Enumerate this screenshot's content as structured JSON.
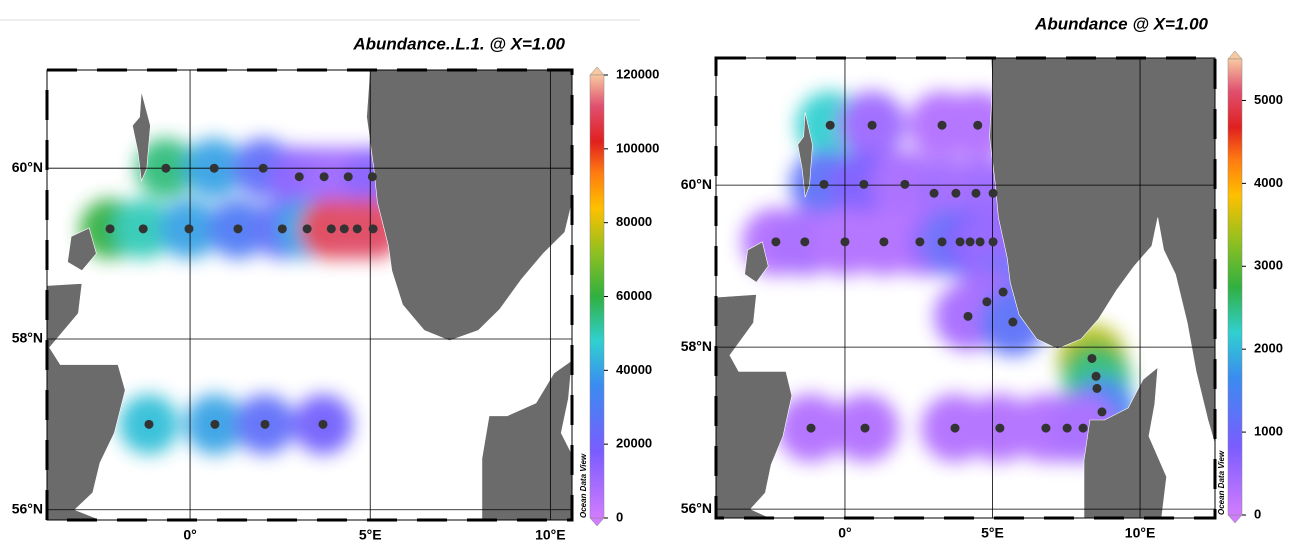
{
  "panels": [
    {
      "title": "Abundance..L.1. @ X=1.00",
      "xlim": [
        -3.97,
        10.6
      ],
      "ylim": [
        55.88,
        61.15
      ],
      "xticks": [
        {
          "value": 0,
          "label": "0°"
        },
        {
          "value": 5,
          "label": "5°E"
        },
        {
          "value": 10,
          "label": "10°E"
        }
      ],
      "yticks": [
        {
          "value": 56,
          "label": "56°N"
        },
        {
          "value": 58,
          "label": "58°N"
        },
        {
          "value": 60,
          "label": "60°N"
        }
      ],
      "clim": [
        0,
        120000
      ],
      "cticks": [
        0,
        20000,
        40000,
        60000,
        80000,
        100000,
        120000
      ],
      "watermark": "Ocean Data View",
      "stations": {
        "x": [
          -0.67,
          0.67,
          2.03,
          3.03,
          3.72,
          4.39,
          5.06,
          -2.22,
          -1.3,
          -0.03,
          1.33,
          2.56,
          3.25,
          3.92,
          4.28,
          4.64,
          5.08,
          -1.14,
          0.69,
          2.08,
          3.69
        ],
        "y": [
          60.0,
          60.0,
          60.0,
          59.9,
          59.9,
          59.9,
          59.9,
          59.29,
          59.29,
          59.29,
          59.29,
          59.29,
          59.29,
          59.29,
          59.29,
          59.29,
          59.29,
          57.0,
          57.0,
          57.0,
          57.0
        ],
        "values": [
          55000,
          40000,
          25000,
          15000,
          12000,
          10000,
          15000,
          60000,
          50000,
          40000,
          30000,
          25000,
          40000,
          100000,
          110000,
          110000,
          110000,
          45000,
          40000,
          25000,
          20000
        ]
      }
    },
    {
      "title": "Abundance @ X=1.00",
      "xlim": [
        -4.37,
        12.54
      ],
      "ylim": [
        55.89,
        61.57
      ],
      "xticks": [
        {
          "value": 0,
          "label": "0°"
        },
        {
          "value": 5,
          "label": "5°E"
        },
        {
          "value": 10,
          "label": "10°E"
        }
      ],
      "yticks": [
        {
          "value": 56,
          "label": "56°N"
        },
        {
          "value": 58,
          "label": "58°N"
        },
        {
          "value": 60,
          "label": "60°N"
        }
      ],
      "clim": [
        0,
        5500
      ],
      "cticks": [
        0,
        1000,
        2000,
        3000,
        4000,
        5000
      ],
      "watermark": "Ocean Data View",
      "stations": {
        "x": [
          -0.5,
          0.92,
          3.29,
          4.5,
          -0.71,
          0.64,
          2.03,
          3.02,
          3.76,
          4.44,
          5.02,
          -2.34,
          -1.36,
          0,
          1.32,
          2.54,
          3.29,
          3.9,
          4.24,
          4.58,
          5.02,
          5.36,
          4.81,
          4.17,
          5.69,
          8.37,
          8.51,
          8.54,
          8.71,
          -1.15,
          0.68,
          3.73,
          5.25,
          6.81,
          7.53,
          8.07
        ],
        "y": [
          60.74,
          60.74,
          60.74,
          60.74,
          60.01,
          60.01,
          60.01,
          59.9,
          59.9,
          59.9,
          59.9,
          59.3,
          59.3,
          59.3,
          59.3,
          59.3,
          59.3,
          59.3,
          59.3,
          59.3,
          59.3,
          58.68,
          58.56,
          58.38,
          58.31,
          57.86,
          57.64,
          57.49,
          57.2,
          57.0,
          57.0,
          57.0,
          57.0,
          57.0,
          57.0,
          57.0
        ],
        "values": [
          2200,
          500,
          300,
          300,
          1200,
          800,
          400,
          400,
          500,
          400,
          500,
          300,
          400,
          300,
          300,
          300,
          600,
          1300,
          1000,
          800,
          600,
          1200,
          500,
          400,
          1200,
          3500,
          2800,
          2500,
          1500,
          300,
          300,
          300,
          300,
          300,
          300,
          400
        ]
      }
    }
  ]
}
